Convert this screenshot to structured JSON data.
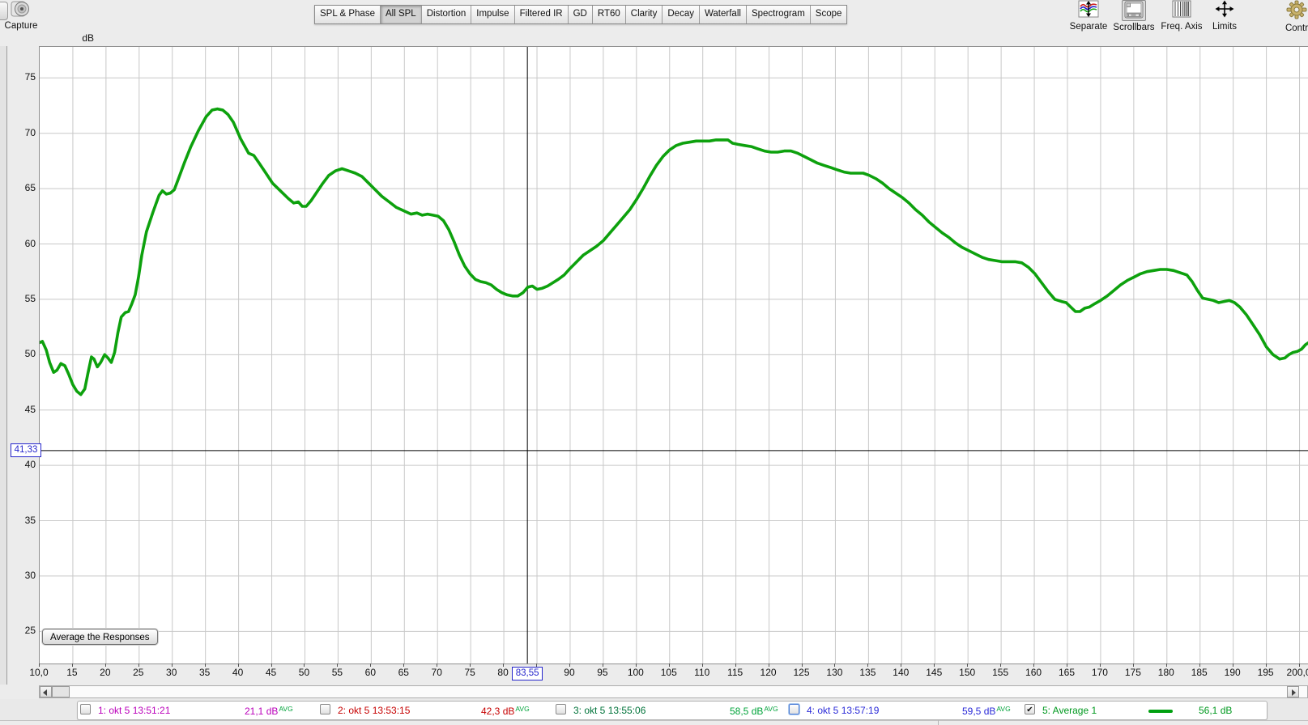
{
  "toolbar": {
    "capture_label": "Capture",
    "tabs": [
      "SPL & Phase",
      "All SPL",
      "Distortion",
      "Impulse",
      "Filtered IR",
      "GD",
      "RT60",
      "Clarity",
      "Decay",
      "Waterfall",
      "Spectrogram",
      "Scope"
    ],
    "active_tab": "All SPL",
    "tools": [
      {
        "name": "separate",
        "label": "Separate",
        "icon": "waves-arrows-icon",
        "pressed": false
      },
      {
        "name": "scrollbars",
        "label": "Scrollbars",
        "icon": "scrollbars-icon",
        "pressed": true
      },
      {
        "name": "freq-axis",
        "label": "Freq. Axis",
        "icon": "freq-axis-icon",
        "pressed": false
      },
      {
        "name": "limits",
        "label": "Limits",
        "icon": "limits-arrows-icon",
        "pressed": false
      },
      {
        "name": "controls",
        "label": "Contr",
        "icon": "gear-icon",
        "pressed": false
      }
    ]
  },
  "chart_data": {
    "type": "line",
    "title": "All SPL",
    "ylabel": "dB",
    "grid": true,
    "x_range": [
      10,
      201.4
    ],
    "ylim": [
      22.1,
      77.8
    ],
    "y_ticks": [
      75,
      70,
      65,
      60,
      55,
      50,
      45,
      40,
      35,
      30,
      25
    ],
    "x_tick_values": [
      10,
      15,
      20,
      25,
      30,
      35,
      40,
      45,
      50,
      55,
      60,
      65,
      70,
      75,
      80,
      85,
      90,
      95,
      100,
      105,
      110,
      115,
      120,
      125,
      130,
      135,
      140,
      145,
      150,
      155,
      160,
      165,
      170,
      175,
      180,
      185,
      190,
      195,
      200
    ],
    "x_tick_labels": [
      "10,0",
      "15",
      "20",
      "25",
      "30",
      "35",
      "40",
      "45",
      "50",
      "55",
      "60",
      "65",
      "70",
      "75",
      "80",
      "85",
      "90",
      "95",
      "100",
      "105",
      "110",
      "115",
      "120",
      "125",
      "130",
      "135",
      "140",
      "145",
      "150",
      "155",
      "160",
      "165",
      "170",
      "175",
      "180",
      "185",
      "190",
      "195",
      "200,0"
    ],
    "cursor": {
      "freq": 83.55,
      "freq_label": "83,55",
      "db": 41.33,
      "db_label": "41,33"
    },
    "overlay_button": "Average the Responses",
    "series": [
      {
        "name": "5: Average 1",
        "color": "#0da10d",
        "points": [
          [
            10,
            51.1
          ],
          [
            10.4,
            51.2
          ],
          [
            11,
            50.4
          ],
          [
            11.5,
            49.3
          ],
          [
            12.1,
            48.4
          ],
          [
            12.6,
            48.6
          ],
          [
            13.2,
            49.2
          ],
          [
            13.8,
            49
          ],
          [
            14.4,
            48.2
          ],
          [
            15,
            47.3
          ],
          [
            15.6,
            46.7
          ],
          [
            16.2,
            46.4
          ],
          [
            16.8,
            46.9
          ],
          [
            17.3,
            48.4
          ],
          [
            17.8,
            49.8
          ],
          [
            18.2,
            49.6
          ],
          [
            18.7,
            48.9
          ],
          [
            19.2,
            49.3
          ],
          [
            19.8,
            50
          ],
          [
            20.3,
            49.7
          ],
          [
            20.8,
            49.3
          ],
          [
            21.3,
            50.2
          ],
          [
            21.8,
            52
          ],
          [
            22.3,
            53.4
          ],
          [
            22.9,
            53.8
          ],
          [
            23.4,
            53.9
          ],
          [
            23.9,
            54.6
          ],
          [
            24.4,
            55.4
          ],
          [
            24.9,
            57
          ],
          [
            25.4,
            59
          ],
          [
            26.1,
            61.1
          ],
          [
            27.1,
            62.9
          ],
          [
            28,
            64.4
          ],
          [
            28.5,
            64.8
          ],
          [
            29.1,
            64.5
          ],
          [
            29.7,
            64.6
          ],
          [
            30.3,
            64.9
          ],
          [
            31,
            66
          ],
          [
            31.8,
            67.3
          ],
          [
            32.8,
            68.8
          ],
          [
            33.9,
            70.2
          ],
          [
            35.1,
            71.5
          ],
          [
            36,
            72.1
          ],
          [
            36.8,
            72.2
          ],
          [
            37.6,
            72.1
          ],
          [
            38.4,
            71.7
          ],
          [
            39.2,
            71
          ],
          [
            40.3,
            69.5
          ],
          [
            41.5,
            68.2
          ],
          [
            42.3,
            68
          ],
          [
            43.1,
            67.3
          ],
          [
            44,
            66.5
          ],
          [
            45.1,
            65.5
          ],
          [
            46.3,
            64.8
          ],
          [
            47.5,
            64.1
          ],
          [
            48.3,
            63.7
          ],
          [
            49,
            63.8
          ],
          [
            49.6,
            63.4
          ],
          [
            50.2,
            63.4
          ],
          [
            50.9,
            63.9
          ],
          [
            51.7,
            64.6
          ],
          [
            52.6,
            65.4
          ],
          [
            53.6,
            66.2
          ],
          [
            54.6,
            66.6
          ],
          [
            55.6,
            66.8
          ],
          [
            56.6,
            66.6
          ],
          [
            57.6,
            66.4
          ],
          [
            58.6,
            66.1
          ],
          [
            59.6,
            65.5
          ],
          [
            60.6,
            64.9
          ],
          [
            61.6,
            64.3
          ],
          [
            62.7,
            63.8
          ],
          [
            63.8,
            63.3
          ],
          [
            64.9,
            63
          ],
          [
            66,
            62.7
          ],
          [
            66.9,
            62.8
          ],
          [
            67.7,
            62.6
          ],
          [
            68.5,
            62.7
          ],
          [
            69.3,
            62.6
          ],
          [
            70.1,
            62.5
          ],
          [
            70.9,
            62.1
          ],
          [
            71.7,
            61.3
          ],
          [
            72.5,
            60.2
          ],
          [
            73.3,
            59
          ],
          [
            74.1,
            58
          ],
          [
            74.9,
            57.3
          ],
          [
            75.7,
            56.8
          ],
          [
            76.5,
            56.6
          ],
          [
            77.3,
            56.5
          ],
          [
            78.1,
            56.3
          ],
          [
            78.9,
            55.9
          ],
          [
            79.7,
            55.6
          ],
          [
            80.5,
            55.4
          ],
          [
            81.3,
            55.3
          ],
          [
            82.1,
            55.3
          ],
          [
            82.9,
            55.6
          ],
          [
            83.6,
            56.1
          ],
          [
            84.3,
            56.2
          ],
          [
            85,
            55.9
          ],
          [
            85.8,
            56
          ],
          [
            86.6,
            56.2
          ],
          [
            87.4,
            56.5
          ],
          [
            88.2,
            56.8
          ],
          [
            89.1,
            57.2
          ],
          [
            90,
            57.8
          ],
          [
            91,
            58.4
          ],
          [
            92,
            59
          ],
          [
            93,
            59.4
          ],
          [
            94,
            59.8
          ],
          [
            95,
            60.3
          ],
          [
            96,
            61
          ],
          [
            97,
            61.7
          ],
          [
            98,
            62.4
          ],
          [
            99,
            63.1
          ],
          [
            100,
            64
          ],
          [
            101,
            65
          ],
          [
            102,
            66.1
          ],
          [
            103,
            67.1
          ],
          [
            104,
            67.9
          ],
          [
            105,
            68.5
          ],
          [
            106,
            68.9
          ],
          [
            107,
            69.1
          ],
          [
            108,
            69.2
          ],
          [
            109,
            69.3
          ],
          [
            110,
            69.3
          ],
          [
            111,
            69.3
          ],
          [
            112,
            69.4
          ],
          [
            113,
            69.4
          ],
          [
            113.8,
            69.4
          ],
          [
            114.5,
            69.1
          ],
          [
            115.3,
            69
          ],
          [
            116.3,
            68.9
          ],
          [
            117.3,
            68.8
          ],
          [
            118.3,
            68.6
          ],
          [
            119.3,
            68.4
          ],
          [
            120.3,
            68.3
          ],
          [
            121.3,
            68.3
          ],
          [
            122.3,
            68.4
          ],
          [
            123.3,
            68.4
          ],
          [
            124.3,
            68.2
          ],
          [
            125.3,
            67.9
          ],
          [
            126.3,
            67.6
          ],
          [
            127.3,
            67.3
          ],
          [
            128.3,
            67.1
          ],
          [
            129.3,
            66.9
          ],
          [
            130.3,
            66.7
          ],
          [
            131.3,
            66.5
          ],
          [
            132.3,
            66.4
          ],
          [
            133.3,
            66.4
          ],
          [
            134.2,
            66.4
          ],
          [
            135.1,
            66.2
          ],
          [
            136.1,
            65.9
          ],
          [
            137.1,
            65.5
          ],
          [
            138.1,
            65
          ],
          [
            139.1,
            64.6
          ],
          [
            140.1,
            64.2
          ],
          [
            141.1,
            63.7
          ],
          [
            142.1,
            63.1
          ],
          [
            143.1,
            62.6
          ],
          [
            144.1,
            62
          ],
          [
            145.1,
            61.5
          ],
          [
            146.1,
            61
          ],
          [
            147.1,
            60.6
          ],
          [
            148.1,
            60.1
          ],
          [
            149.1,
            59.7
          ],
          [
            150.1,
            59.4
          ],
          [
            151.1,
            59.1
          ],
          [
            152.1,
            58.8
          ],
          [
            153.1,
            58.6
          ],
          [
            154.1,
            58.5
          ],
          [
            155.1,
            58.4
          ],
          [
            156.1,
            58.4
          ],
          [
            157.1,
            58.4
          ],
          [
            158.1,
            58.3
          ],
          [
            159.1,
            57.9
          ],
          [
            160.1,
            57.3
          ],
          [
            161.1,
            56.5
          ],
          [
            162.1,
            55.7
          ],
          [
            163.1,
            55
          ],
          [
            164.1,
            54.8
          ],
          [
            164.8,
            54.7
          ],
          [
            165.5,
            54.3
          ],
          [
            166.2,
            53.9
          ],
          [
            166.9,
            53.9
          ],
          [
            167.6,
            54.2
          ],
          [
            168.3,
            54.3
          ],
          [
            169.1,
            54.6
          ],
          [
            170,
            54.9
          ],
          [
            171,
            55.3
          ],
          [
            172,
            55.8
          ],
          [
            173,
            56.3
          ],
          [
            174,
            56.7
          ],
          [
            175,
            57
          ],
          [
            176,
            57.3
          ],
          [
            177,
            57.5
          ],
          [
            178,
            57.6
          ],
          [
            179,
            57.7
          ],
          [
            180,
            57.7
          ],
          [
            181,
            57.6
          ],
          [
            182,
            57.4
          ],
          [
            183,
            57.2
          ],
          [
            183.8,
            56.6
          ],
          [
            184.6,
            55.8
          ],
          [
            185.4,
            55.1
          ],
          [
            186.2,
            55
          ],
          [
            187,
            54.9
          ],
          [
            187.8,
            54.7
          ],
          [
            188.6,
            54.8
          ],
          [
            189.4,
            54.9
          ],
          [
            190.2,
            54.7
          ],
          [
            191,
            54.3
          ],
          [
            192,
            53.6
          ],
          [
            193,
            52.7
          ],
          [
            194,
            51.8
          ],
          [
            195,
            50.7
          ],
          [
            196,
            50
          ],
          [
            197,
            49.6
          ],
          [
            197.8,
            49.7
          ],
          [
            198.4,
            50
          ],
          [
            199,
            50.2
          ],
          [
            199.7,
            50.3
          ],
          [
            200.3,
            50.5
          ],
          [
            200.9,
            50.9
          ],
          [
            201.4,
            51.1
          ]
        ]
      }
    ]
  },
  "legend": {
    "check_glyph": "✔",
    "avg_color": "#00a33a",
    "entries": [
      {
        "checked": false,
        "focused": false,
        "label": "1: okt 5 13:51:21",
        "value": "21,1 dB",
        "avg": "AVG",
        "label_color": "#bb00bb",
        "value_color": "#bb00bb"
      },
      {
        "checked": false,
        "focused": false,
        "label": "2: okt 5 13:53:15",
        "value": "42,3 dB",
        "avg": "AVG",
        "label_color": "#c60000",
        "value_color": "#c60000"
      },
      {
        "checked": false,
        "focused": false,
        "label": "3: okt 5 13:55:06",
        "value": "58,5 dB",
        "avg": "AVG",
        "label_color": "#00733a",
        "value_color": "#00a33a"
      },
      {
        "checked": false,
        "focused": true,
        "label": "4: okt 5 13:57:19",
        "value": "59,5 dB",
        "avg": "AVG",
        "label_color": "#2a2ad8",
        "value_color": "#2a2ad8"
      },
      {
        "checked": true,
        "focused": false,
        "label": "5: Average 1",
        "value": "56,1 dB",
        "avg": null,
        "label_color": "#00991f",
        "value_color": "#00991f",
        "swatch_color": "#00a010"
      }
    ]
  }
}
